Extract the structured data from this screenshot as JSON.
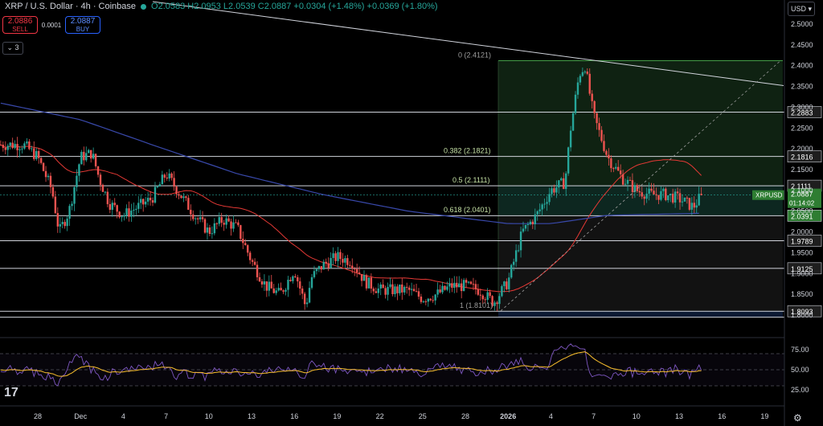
{
  "header": {
    "symbol": "XRP / U.S. Dollar · 4h · Coinbase",
    "ohlc": "O2.0583 H2.0953 L2.0539 C2.0887 +0.0304 (+1.48%) +0.0369 (+1.80%)"
  },
  "trade": {
    "sell_price": "2.0886",
    "sell_label": "SELL",
    "spread": "0.0001",
    "buy_price": "2.0887",
    "buy_label": "BUY"
  },
  "indicators_toggle": "3",
  "currency": "USD",
  "tv_logo": "17",
  "colors": {
    "up": "#26a69a",
    "down": "#ef5350",
    "ma_fast": "#e53935",
    "ma_slow": "#3949ab",
    "rsi": "#7e57c2",
    "rsi_ma": "#fbc02d",
    "accent": "#2e7d32"
  },
  "chart_data": {
    "type": "candlestick",
    "y_ticks": [
      "2.5000",
      "2.4500",
      "2.4000",
      "2.3500",
      "2.3000",
      "2.2500",
      "2.2000",
      "2.1500",
      "2.1000",
      "2.0500",
      "2.0000",
      "1.9500",
      "1.9000",
      "1.8500",
      "1.8000"
    ],
    "x_ticks": [
      "28",
      "Dec",
      "4",
      "7",
      "10",
      "13",
      "16",
      "19",
      "22",
      "25",
      "28",
      "2026",
      "4",
      "7",
      "10",
      "13",
      "16",
      "19"
    ],
    "fib_labels": [
      {
        "text": "0 (2.4121)",
        "value": 2.4121
      },
      {
        "text": "0.382 (2.1821)",
        "value": 2.1821
      },
      {
        "text": "0.5 (2.1111)",
        "value": 2.1111
      },
      {
        "text": "0.618 (2.0401)",
        "value": 2.0401
      },
      {
        "text": "1 (1.8101)",
        "value": 1.8101
      }
    ],
    "levels": [
      {
        "label": "2.2883",
        "value": 2.2883
      },
      {
        "label": "2.1816",
        "value": 2.1816
      },
      {
        "label": "2.1111",
        "value": 2.1111
      },
      {
        "label": "2.0391",
        "value": 2.0391
      },
      {
        "label": "1.9789",
        "value": 1.9789
      },
      {
        "label": "1.9125",
        "value": 1.9125
      },
      {
        "label": "1.8093",
        "value": 1.8093
      }
    ],
    "price_tag": {
      "symbol": "XRPUSD",
      "price": "2.0887",
      "countdown": "01:14:02"
    },
    "rsi": {
      "ticks": [
        "75.00",
        "50.00",
        "25.00"
      ],
      "upper": 70,
      "lower": 30,
      "mid": 50,
      "ylim": [
        10,
        90
      ]
    },
    "anchor_closes": [
      {
        "day": -1,
        "v": 2.21
      },
      {
        "day": 0,
        "v": 2.18
      },
      {
        "day": 1,
        "v": 2.1
      },
      {
        "day": 1.5,
        "v": 2.0
      },
      {
        "day": 2.2,
        "v": 2.05
      },
      {
        "day": 3,
        "v": 2.18
      },
      {
        "day": 3.8,
        "v": 2.19
      },
      {
        "day": 4.3,
        "v": 2.13
      },
      {
        "day": 5,
        "v": 2.07
      },
      {
        "day": 6,
        "v": 2.04
      },
      {
        "day": 7,
        "v": 2.06
      },
      {
        "day": 8,
        "v": 2.08
      },
      {
        "day": 9,
        "v": 2.14
      },
      {
        "day": 10,
        "v": 2.09
      },
      {
        "day": 11,
        "v": 2.04
      },
      {
        "day": 12,
        "v": 2.0
      },
      {
        "day": 13,
        "v": 2.03
      },
      {
        "day": 14,
        "v": 2.01
      },
      {
        "day": 15,
        "v": 1.93
      },
      {
        "day": 16,
        "v": 1.87
      },
      {
        "day": 17,
        "v": 1.85
      },
      {
        "day": 18,
        "v": 1.91
      },
      {
        "day": 18.8,
        "v": 1.82
      },
      {
        "day": 19.2,
        "v": 1.89
      },
      {
        "day": 20,
        "v": 1.92
      },
      {
        "day": 21,
        "v": 1.94
      },
      {
        "day": 22,
        "v": 1.93
      },
      {
        "day": 23,
        "v": 1.88
      },
      {
        "day": 24,
        "v": 1.86
      },
      {
        "day": 25,
        "v": 1.86
      },
      {
        "day": 26,
        "v": 1.86
      },
      {
        "day": 27,
        "v": 1.84
      },
      {
        "day": 28,
        "v": 1.85
      },
      {
        "day": 29,
        "v": 1.87
      },
      {
        "day": 30,
        "v": 1.87
      },
      {
        "day": 31,
        "v": 1.86
      },
      {
        "day": 32,
        "v": 1.83
      },
      {
        "day": 33,
        "v": 1.88
      },
      {
        "day": 34,
        "v": 2.0
      },
      {
        "day": 35,
        "v": 2.04
      },
      {
        "day": 36,
        "v": 2.1
      },
      {
        "day": 37,
        "v": 2.12
      },
      {
        "day": 37.4,
        "v": 2.25
      },
      {
        "day": 38,
        "v": 2.38
      },
      {
        "day": 38.4,
        "v": 2.4
      },
      {
        "day": 39,
        "v": 2.28
      },
      {
        "day": 40,
        "v": 2.18
      },
      {
        "day": 41,
        "v": 2.13
      },
      {
        "day": 42,
        "v": 2.1
      },
      {
        "day": 43,
        "v": 2.09
      },
      {
        "day": 44,
        "v": 2.09
      },
      {
        "day": 45,
        "v": 2.08
      },
      {
        "day": 46,
        "v": 2.06
      },
      {
        "day": 46.6,
        "v": 2.0887
      }
    ]
  }
}
